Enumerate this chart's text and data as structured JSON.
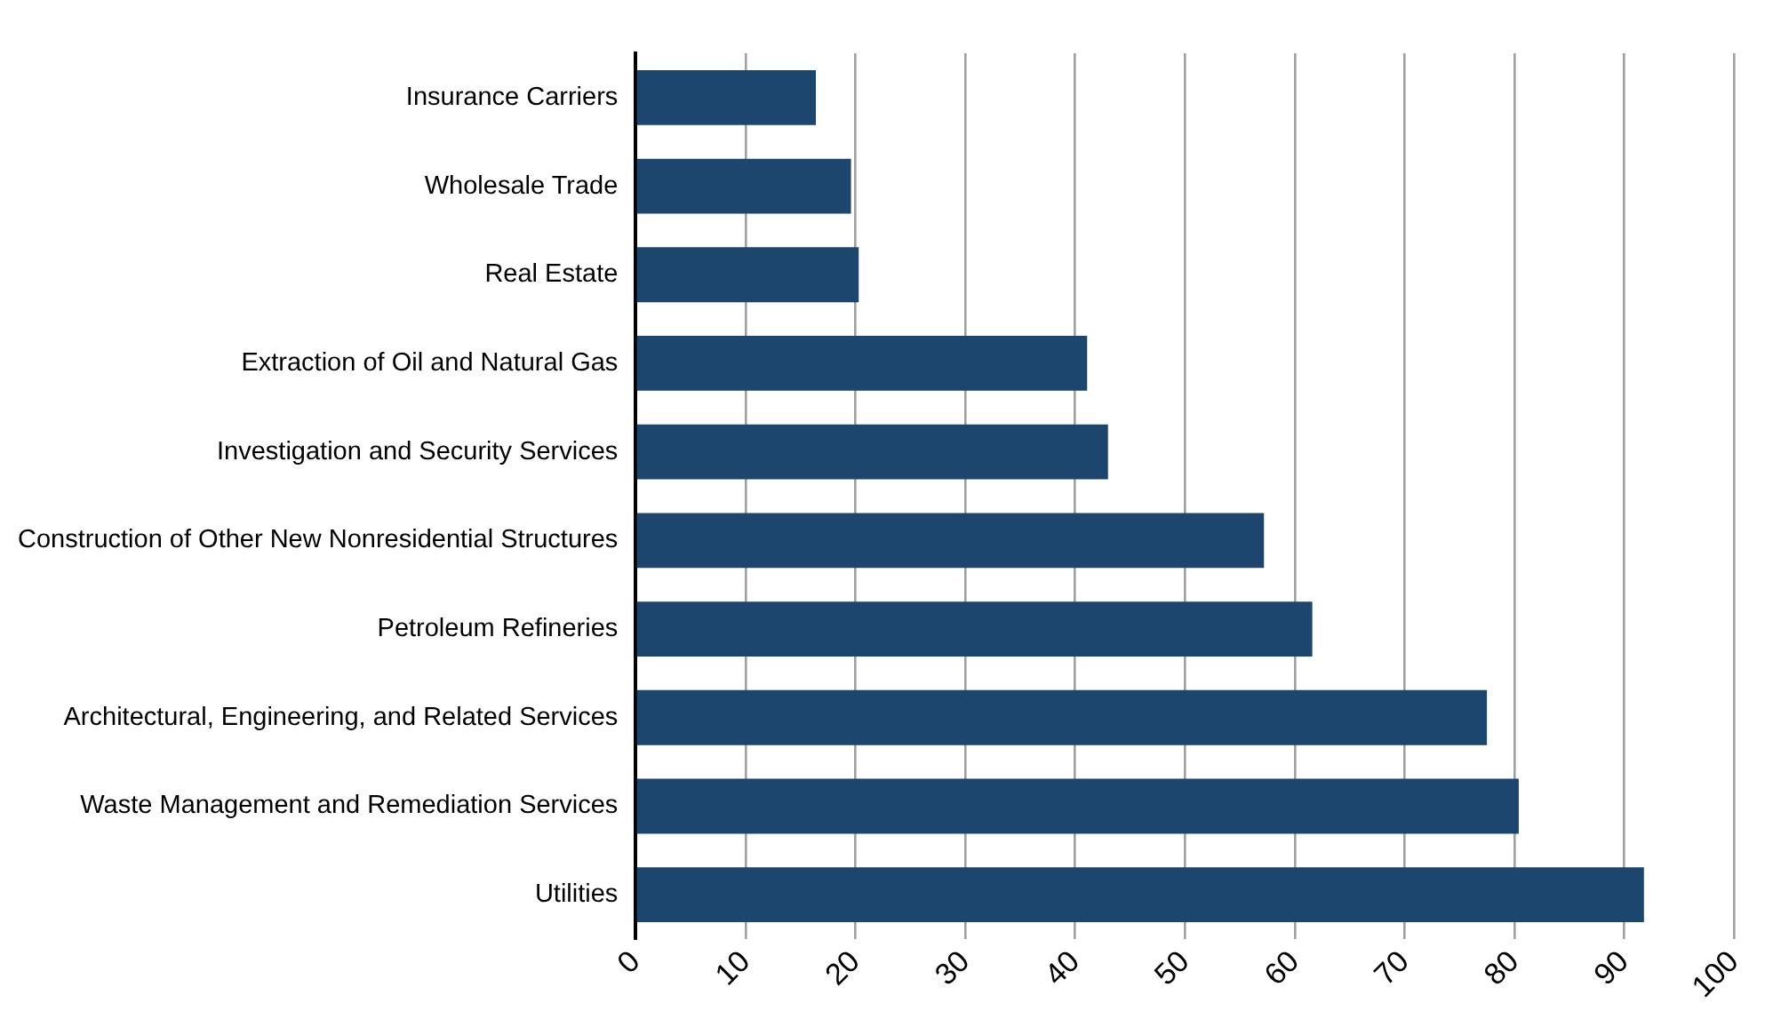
{
  "chart_data": {
    "type": "bar",
    "orientation": "horizontal",
    "categories": [
      "Insurance Carriers",
      "Wholesale Trade",
      "Real Estate",
      "Extraction of Oil and Natural Gas",
      "Investigation and Security Services",
      "Construction of Other New Nonresidential Structures",
      "Petroleum Refineries",
      "Architectural, Engineering, and Related Services",
      "Waste Management and Remediation Services",
      "Utilities"
    ],
    "values": [
      16.4,
      19.6,
      20.3,
      41.1,
      43,
      57.2,
      61.6,
      77.5,
      80.4,
      91.8
    ],
    "color": "#1c466e",
    "xlim": [
      0,
      100
    ],
    "xticks": [
      0,
      10,
      20,
      30,
      40,
      50,
      60,
      70,
      80,
      90,
      100
    ],
    "grid": "x",
    "legend": false
  }
}
